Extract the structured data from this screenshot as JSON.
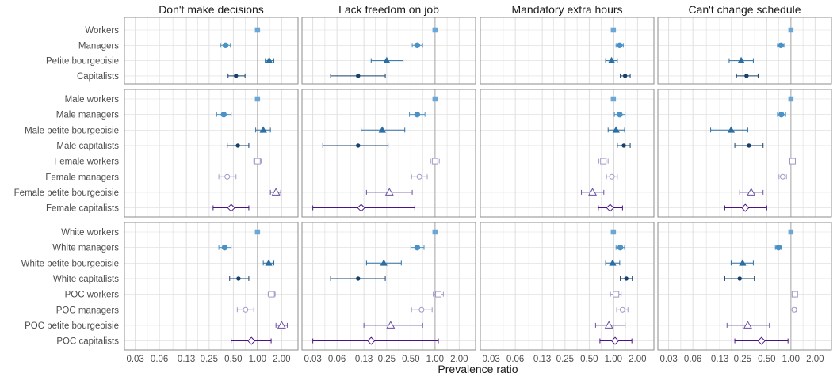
{
  "chart_data": {
    "type": "scatter",
    "subtype": "forest-plot",
    "xlabel": "Prevalence ratio",
    "x_scale": "log",
    "xlim": [
      0.022,
      3.2
    ],
    "x_ticks": [
      0.03,
      0.06,
      0.13,
      0.25,
      0.5,
      1,
      2
    ],
    "x_tick_labels": [
      "0.03",
      "0.06",
      "0.13",
      "0.25",
      "0.50",
      "1.00",
      "2.00"
    ],
    "reference_line": 1,
    "grid": true,
    "legend": "none",
    "colors": {
      "workers": "#6aa6d6",
      "managers": "#4a91c6",
      "petite": "#2c6fa3",
      "capitalists": "#17406b",
      "f_workers": "#9e9ac8",
      "f_managers": "#9e9ac8",
      "f_petite": "#6a51a3",
      "f_capitalists": "#4a1486",
      "panel_border": "#8c8c8c",
      "grid": "#dcdcdc",
      "refline": "#b5b5b5"
    },
    "columns": [
      "Don't make decisions",
      "Lack freedom on job",
      "Mandatory extra hours",
      "Can't change schedule"
    ],
    "rows": [
      {
        "categories": [
          "Workers",
          "Managers",
          "Petite bourgeoisie",
          "Capitalists"
        ],
        "shapes": [
          "square",
          "circle",
          "triangle",
          "dot"
        ],
        "colorKeys": [
          "workers",
          "managers",
          "petite",
          "capitalists"
        ],
        "filled": [
          true,
          true,
          true,
          true
        ],
        "values": [
          [
            [
              1.0,
              1.0,
              1.0
            ],
            [
              0.4,
              0.35,
              0.46
            ],
            [
              1.4,
              1.25,
              1.6
            ],
            [
              0.54,
              0.43,
              0.7
            ]
          ],
          [
            [
              1.0,
              1.0,
              1.0
            ],
            [
              0.6,
              0.52,
              0.7
            ],
            [
              0.25,
              0.16,
              0.4
            ],
            [
              0.11,
              0.05,
              0.24
            ]
          ],
          [
            [
              1.0,
              1.0,
              1.0
            ],
            [
              1.2,
              1.08,
              1.33
            ],
            [
              0.95,
              0.8,
              1.12
            ],
            [
              1.4,
              1.22,
              1.62
            ]
          ],
          [
            [
              1.0,
              1.0,
              1.0
            ],
            [
              0.75,
              0.68,
              0.82
            ],
            [
              0.24,
              0.17,
              0.34
            ],
            [
              0.28,
              0.21,
              0.39
            ]
          ]
        ]
      },
      {
        "categories": [
          "Male workers",
          "Male managers",
          "Male petite bourgeoisie",
          "Male capitalists",
          "Female workers",
          "Female managers",
          "Female petite bourgeoisie",
          "Female capitalists"
        ],
        "shapes": [
          "square",
          "circle",
          "triangle",
          "dot",
          "square",
          "circle",
          "triangle",
          "diamond"
        ],
        "colorKeys": [
          "workers",
          "managers",
          "petite",
          "capitalists",
          "f_workers",
          "f_managers",
          "f_petite",
          "f_capitalists"
        ],
        "filled": [
          true,
          true,
          true,
          true,
          false,
          false,
          false,
          false
        ],
        "values": [
          [
            [
              1.0,
              1.0,
              1.0
            ],
            [
              0.38,
              0.31,
              0.47
            ],
            [
              1.18,
              0.95,
              1.45
            ],
            [
              0.57,
              0.42,
              0.78
            ],
            [
              1.0,
              0.9,
              1.11
            ],
            [
              0.42,
              0.33,
              0.54
            ],
            [
              1.7,
              1.45,
              1.95
            ],
            [
              0.47,
              0.28,
              0.78
            ]
          ],
          [
            [
              1.0,
              1.0,
              1.0
            ],
            [
              0.6,
              0.48,
              0.75
            ],
            [
              0.22,
              0.12,
              0.42
            ],
            [
              0.11,
              0.04,
              0.26
            ],
            [
              1.0,
              0.88,
              1.13
            ],
            [
              0.64,
              0.51,
              0.8
            ],
            [
              0.27,
              0.14,
              0.52
            ],
            [
              0.12,
              0.03,
              0.56
            ]
          ],
          [
            [
              1.0,
              1.0,
              1.0
            ],
            [
              1.2,
              1.03,
              1.4
            ],
            [
              1.08,
              0.86,
              1.38
            ],
            [
              1.35,
              1.12,
              1.62
            ],
            [
              0.75,
              0.66,
              0.86
            ],
            [
              0.96,
              0.82,
              1.12
            ],
            [
              0.55,
              0.4,
              0.76
            ],
            [
              0.91,
              0.65,
              1.3
            ]
          ],
          [
            [
              1.0,
              1.0,
              1.0
            ],
            [
              0.76,
              0.68,
              0.86
            ],
            [
              0.18,
              0.1,
              0.29
            ],
            [
              0.3,
              0.2,
              0.45
            ],
            [
              1.05,
              1.05,
              1.05
            ],
            [
              0.79,
              0.71,
              0.88
            ],
            [
              0.32,
              0.23,
              0.45
            ],
            [
              0.27,
              0.15,
              0.5
            ]
          ]
        ]
      },
      {
        "categories": [
          "White workers",
          "White managers",
          "White petite bourgeoisie",
          "White capitalists",
          "POC workers",
          "POC managers",
          "POC petite bourgeoisie",
          "POC capitalists"
        ],
        "shapes": [
          "square",
          "circle",
          "triangle",
          "dot",
          "square",
          "circle",
          "triangle",
          "diamond"
        ],
        "colorKeys": [
          "workers",
          "managers",
          "petite",
          "capitalists",
          "f_workers",
          "f_managers",
          "f_petite",
          "f_capitalists"
        ],
        "filled": [
          true,
          true,
          true,
          true,
          false,
          false,
          false,
          false
        ],
        "values": [
          [
            [
              1.0,
              1.0,
              1.0
            ],
            [
              0.39,
              0.33,
              0.47
            ],
            [
              1.38,
              1.18,
              1.6
            ],
            [
              0.58,
              0.45,
              0.78
            ],
            [
              1.5,
              1.36,
              1.66
            ],
            [
              0.71,
              0.56,
              0.9
            ],
            [
              2.0,
              1.7,
              2.35
            ],
            [
              0.84,
              0.47,
              1.48
            ]
          ],
          [
            [
              1.0,
              1.0,
              1.0
            ],
            [
              0.6,
              0.5,
              0.73
            ],
            [
              0.23,
              0.14,
              0.38
            ],
            [
              0.11,
              0.05,
              0.24
            ],
            [
              1.1,
              0.95,
              1.27
            ],
            [
              0.68,
              0.51,
              0.92
            ],
            [
              0.28,
              0.13,
              0.7
            ],
            [
              0.16,
              0.03,
              1.1
            ]
          ],
          [
            [
              1.0,
              1.0,
              1.0
            ],
            [
              1.22,
              1.08,
              1.38
            ],
            [
              0.98,
              0.8,
              1.2
            ],
            [
              1.45,
              1.22,
              1.72
            ],
            [
              1.08,
              0.92,
              1.25
            ],
            [
              1.3,
              1.1,
              1.52
            ],
            [
              0.88,
              0.6,
              1.4
            ],
            [
              1.05,
              0.68,
              1.7
            ]
          ],
          [
            [
              1.0,
              1.0,
              1.0
            ],
            [
              0.7,
              0.64,
              0.76
            ],
            [
              0.25,
              0.18,
              0.34
            ],
            [
              0.23,
              0.15,
              0.35
            ],
            [
              1.12,
              1.08,
              1.16
            ],
            [
              1.1,
              1.05,
              1.16
            ],
            [
              0.29,
              0.16,
              0.54
            ],
            [
              0.43,
              0.2,
              0.92
            ]
          ]
        ]
      }
    ]
  }
}
